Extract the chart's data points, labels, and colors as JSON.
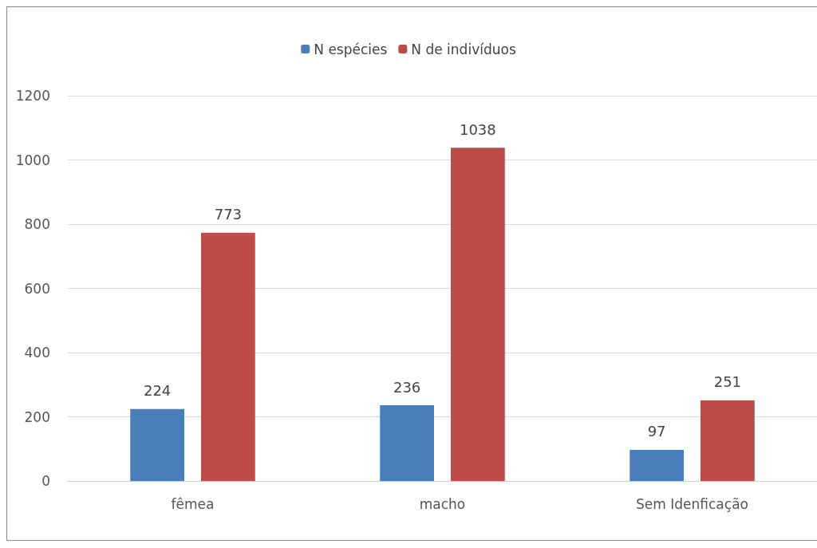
{
  "chart_data": {
    "type": "bar",
    "categories": [
      "fêmea",
      "macho",
      "Sem Idenficação"
    ],
    "series": [
      {
        "name": "N espécies",
        "color": "#4a7ebb",
        "values": [
          224,
          236,
          97
        ]
      },
      {
        "name": "N de indivíduos",
        "color": "#be4b48",
        "values": [
          773,
          1038,
          251
        ]
      }
    ],
    "ylim": [
      0,
      1200
    ],
    "yticks": [
      0,
      200,
      400,
      600,
      800,
      1000,
      1200
    ],
    "grid": "y",
    "legend": "top",
    "data_labels": true
  }
}
